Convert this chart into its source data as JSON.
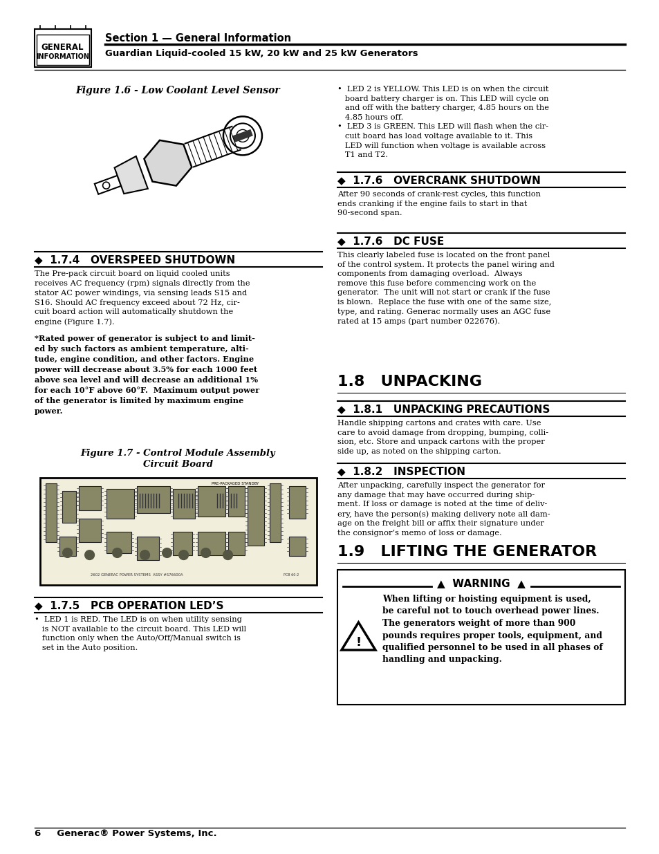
{
  "page_bg": "#ffffff",
  "header_section_text": "Section 1 — General Information",
  "header_subtitle": "Guardian Liquid-cooled 15 kW, 20 kW and 25 kW Generators",
  "fig16_title": "Figure 1.6 - Low Coolant Level Sensor",
  "fig17_title": "Figure 1.7 - Control Module Assembly\nCircuit Board",
  "sec174_title": "◆  1.7.4   OVERSPEED SHUTDOWN",
  "sec174_body": "The Pre-pack circuit board on liquid cooled units\nreceives AC frequency (rpm) signals directly from the\nstator AC power windings, via sensing leads S15 and\nS16. Should AC frequency exceed about 72 Hz, cir-\ncuit board action will automatically shutdown the\nengine (Figure 1.7).",
  "sec174_bold": "*Rated power of generator is subject to and limit-\ned by such factors as ambient temperature, alti-\ntude, engine condition, and other factors. Engine\npower will decrease about 3.5% for each 1000 feet\nabove sea level and will decrease an additional 1%\nfor each 10°F above 60°F.  Maximum output power\nof the generator is limited by maximum engine\npower.",
  "sec175_title": "◆  1.7.5   PCB OPERATION LED’S",
  "sec175_body1": "•  LED 1 is RED. The LED is on when utility sensing\n   is NOT available to the circuit board. This LED will\n   function only when the Auto/Off/Manual switch is\n   set in the Auto position.",
  "sec176a_title": "◆  1.7.6   OVERCRANK SHUTDOWN",
  "sec176a_body": "After 90 seconds of crank-rest cycles, this function\nends cranking if the engine fails to start in that\n90-second span.",
  "sec176b_title": "◆  1.7.6   DC FUSE",
  "sec176b_body": "This clearly labeled fuse is located on the front panel\nof the control system. It protects the panel wiring and\ncomponents from damaging overload.  Always\nremove this fuse before commencing work on the\ngenerator.  The unit will not start or crank if the fuse\nis blown.  Replace the fuse with one of the same size,\ntype, and rating. Generac normally uses an AGC fuse\nrated at 15 amps (part number 022676).",
  "sec18_title": "1.8   UNPACKING",
  "sec181_title": "◆  1.8.1   UNPACKING PRECAUTIONS",
  "sec181_body": "Handle shipping cartons and crates with care. Use\ncare to avoid damage from dropping, bumping, colli-\nsion, etc. Store and unpack cartons with the proper\nside up, as noted on the shipping carton.",
  "sec182_title": "◆  1.8.2   INSPECTION",
  "sec182_body": "After unpacking, carefully inspect the generator for\nany damage that may have occurred during ship-\nment. If loss or damage is noted at the time of deliv-\nery, have the person(s) making delivery note all dam-\nage on the freight bill or affix their signature under\nthe consignor’s memo of loss or damage.",
  "sec19_title": "1.9   LIFTING THE GENERATOR",
  "warning_title": "▲  WARNING  ▲",
  "warning_body": "When lifting or hoisting equipment is used,\nbe careful not to touch overhead power lines.\nThe generators weight of more than 900\npounds requires proper tools, equipment, and\nqualified personnel to be used in all phases of\nhandling and unpacking.",
  "sec175_body2": "•  LED 2 is YELLOW. This LED is on when the circuit\n   board battery charger is on. This LED will cycle on\n   and off with the battery charger, 4.85 hours on the\n   4.85 hours off.\n•  LED 3 is GREEN. This LED will flash when the cir-\n   cuit board has load voltage available to it. This\n   LED will function when voltage is available across\n   T1 and T2.",
  "footer_text": "6     Generac® Power Systems, Inc.",
  "ML": 0.052,
  "MR": 0.948,
  "CS": 0.488,
  "RC": 0.512
}
